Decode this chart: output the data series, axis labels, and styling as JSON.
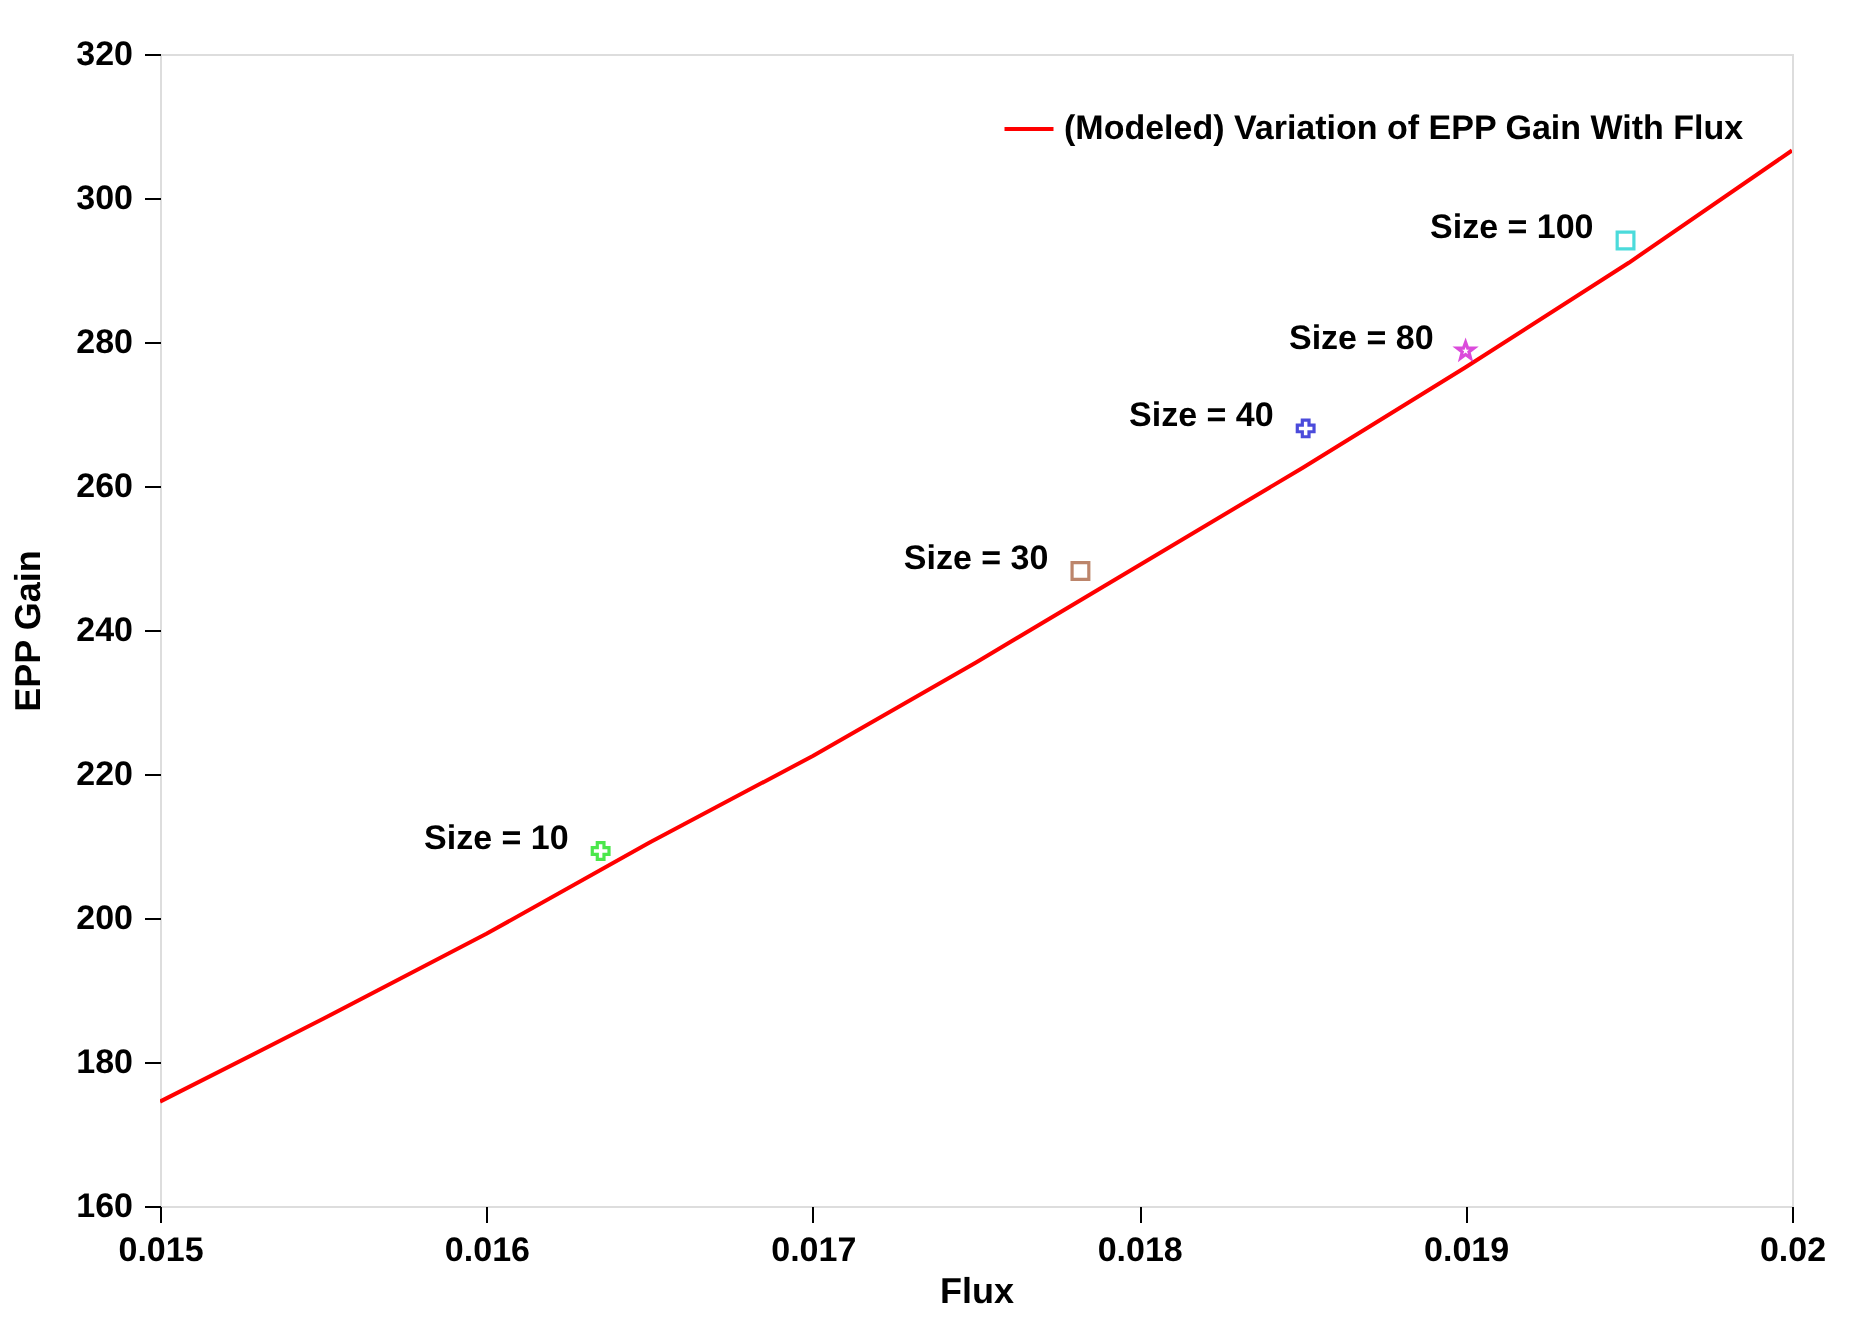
{
  "chart_data": {
    "type": "line",
    "xlabel": "Flux",
    "ylabel": "EPP Gain",
    "xlim": [
      0.015,
      0.02
    ],
    "ylim": [
      160,
      320
    ],
    "xticks": [
      0.015,
      0.016,
      0.017,
      0.018,
      0.019,
      0.02
    ],
    "yticks": [
      160,
      180,
      200,
      220,
      240,
      260,
      280,
      300,
      320
    ],
    "grid": false,
    "legend": "top right",
    "series": [
      {
        "name": "(Modeled) Variation of EPP Gain With Flux",
        "color": "#ff0000",
        "marker": "none",
        "line_style": "solid",
        "x": [
          0.015,
          0.0155,
          0.016,
          0.0165,
          0.017,
          0.0175,
          0.018,
          0.0185,
          0.019,
          0.0195,
          0.02
        ],
        "values": [
          174.5,
          186,
          197.8,
          210.5,
          222.5,
          235.5,
          249,
          262.5,
          276.5,
          291,
          306.6
        ]
      },
      {
        "type": "scatter",
        "color": "#00dd00",
        "marker": "cross",
        "x": [
          0.01635
        ],
        "values": [
          209.3
        ]
      },
      {
        "type": "scatter",
        "color": "#a0522d",
        "marker": "square",
        "x": [
          0.01782
        ],
        "values": [
          248.2
        ]
      },
      {
        "type": "scatter",
        "color": "#0000cc",
        "marker": "cross",
        "x": [
          0.01851
        ],
        "values": [
          268
        ]
      },
      {
        "type": "scatter",
        "color": "#cc00cc",
        "marker": "star",
        "x": [
          0.019
        ],
        "values": [
          278.8
        ]
      },
      {
        "type": "scatter",
        "color": "#00cccc",
        "marker": "square",
        "x": [
          0.01949
        ],
        "values": [
          294.1
        ]
      }
    ],
    "annotations": [
      {
        "text": "Size = 10",
        "x": 0.01635,
        "y": 209.3
      },
      {
        "text": "Size = 30",
        "x": 0.01782,
        "y": 248.2
      },
      {
        "text": "Size = 40",
        "x": 0.01851,
        "y": 268
      },
      {
        "text": "Size = 80",
        "x": 0.019,
        "y": 278.8
      },
      {
        "text": "Size = 100",
        "x": 0.01949,
        "y": 294.1
      }
    ]
  }
}
